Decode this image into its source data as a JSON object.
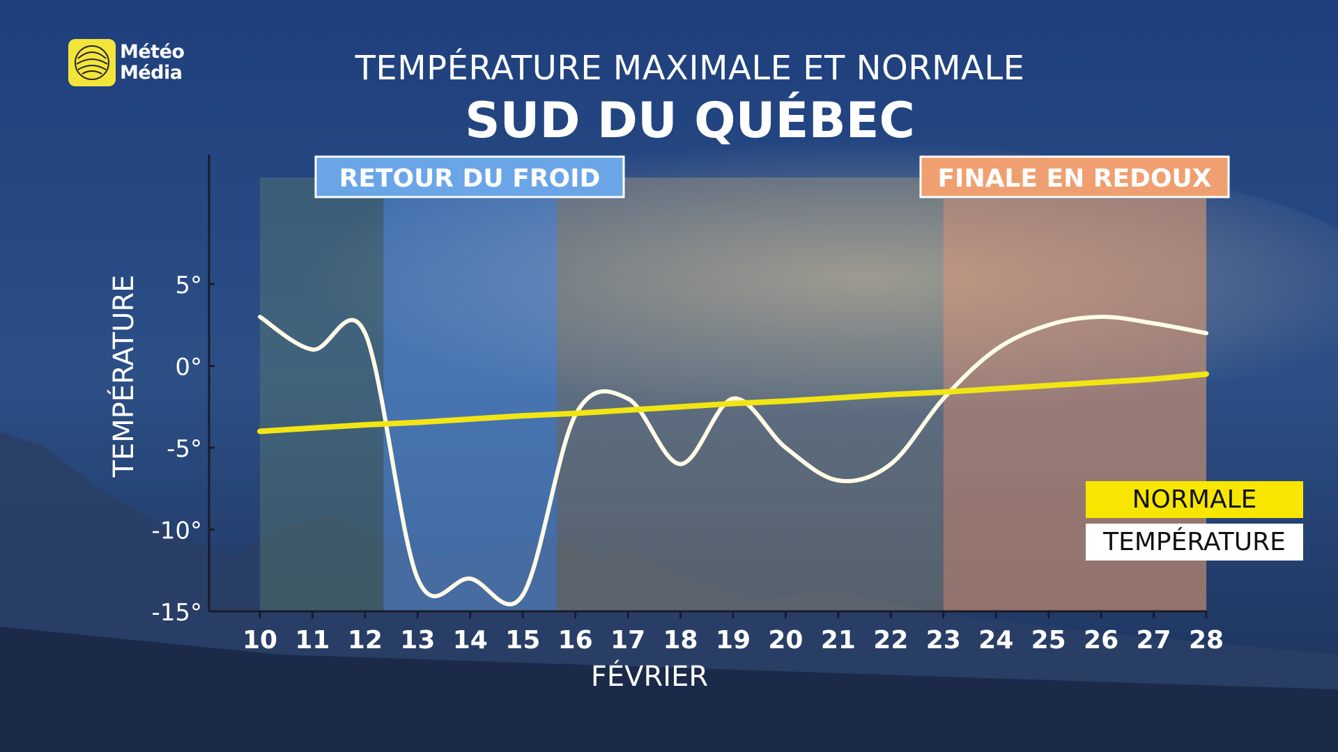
{
  "logo": {
    "line1": "Météo",
    "line2": "Média"
  },
  "title": "TEMPÉRATURE MAXIMALE ET NORMALE",
  "subtitle": "SUD DU QUÉBEC",
  "chart_data": {
    "type": "line",
    "x": [
      10,
      11,
      12,
      13,
      14,
      15,
      16,
      17,
      18,
      19,
      20,
      21,
      22,
      23,
      24,
      25,
      26,
      27,
      28
    ],
    "xlabel": "FÉVRIER",
    "ylabel": "TEMPÉRATURE",
    "ylim": [
      -15,
      5
    ],
    "yticks": [
      5,
      0,
      -5,
      -10,
      -15
    ],
    "ytick_labels": [
      "5°",
      "0°",
      "-5°",
      "-10°",
      "-15°"
    ],
    "series": [
      {
        "name": "TEMPÉRATURE",
        "color": "#fffbe6",
        "values": [
          3,
          1,
          2,
          -13,
          -13,
          -14,
          -3,
          -2,
          -6,
          -2,
          -5,
          -7,
          -6,
          -2,
          1,
          2.5,
          3,
          2.6,
          2
        ]
      },
      {
        "name": "NORMALE",
        "color": "#f2e514",
        "values": [
          -4,
          -3.8,
          -3.6,
          -3.45,
          -3.25,
          -3.05,
          -2.9,
          -2.7,
          -2.5,
          -2.3,
          -2.15,
          -1.95,
          -1.75,
          -1.6,
          -1.4,
          -1.2,
          -1.0,
          -0.8,
          -0.5
        ]
      }
    ],
    "annotations": [
      {
        "label": "RETOUR DU FROID",
        "x_start": 12.35,
        "x_end": 15.65,
        "color": "#6aa5e8"
      },
      {
        "label": "FINALE EN REDOUX",
        "x_start": 23.0,
        "x_end": 28.0,
        "color": "#f0a070"
      }
    ],
    "legend_position": "bottom-right"
  },
  "legend": {
    "normale": "NORMALE",
    "temperature": "TEMPÉRATURE"
  }
}
